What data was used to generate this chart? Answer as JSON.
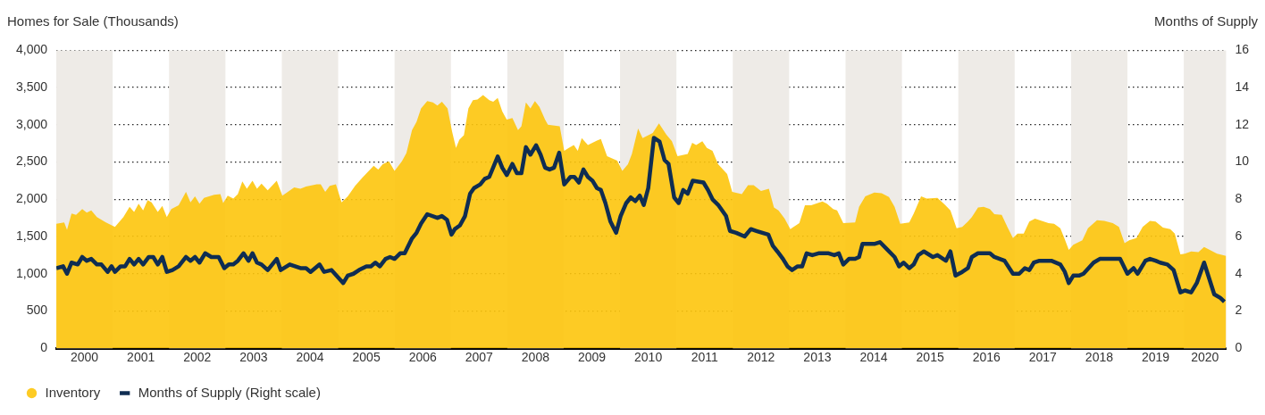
{
  "chart_data": {
    "type": "area",
    "ylabel": "Homes for Sale (Thousands)",
    "y2label": "Months of Supply",
    "xlim": [
      2000,
      2020.75
    ],
    "xticks": [
      {
        "value": 2000.5,
        "label": "2000"
      },
      {
        "value": 2001.5,
        "label": "2001"
      },
      {
        "value": 2002.5,
        "label": "2002"
      },
      {
        "value": 2003.5,
        "label": "2003"
      },
      {
        "value": 2004.5,
        "label": "2004"
      },
      {
        "value": 2005.5,
        "label": "2005"
      },
      {
        "value": 2006.5,
        "label": "2006"
      },
      {
        "value": 2007.5,
        "label": "2007"
      },
      {
        "value": 2008.5,
        "label": "2008"
      },
      {
        "value": 2009.5,
        "label": "2009"
      },
      {
        "value": 2010.5,
        "label": "2010"
      },
      {
        "value": 2011.5,
        "label": "2011"
      },
      {
        "value": 2012.5,
        "label": "2012"
      },
      {
        "value": 2013.5,
        "label": "2013"
      },
      {
        "value": 2014.5,
        "label": "2014"
      },
      {
        "value": 2015.5,
        "label": "2015"
      },
      {
        "value": 2016.5,
        "label": "2016"
      },
      {
        "value": 2017.5,
        "label": "2017"
      },
      {
        "value": 2018.5,
        "label": "2018"
      },
      {
        "value": 2019.5,
        "label": "2019"
      },
      {
        "value": 2020.375,
        "label": "2020"
      }
    ],
    "ylim": [
      0,
      4000
    ],
    "yticks": [
      0,
      500,
      {
        "value": 1000,
        "label": "1,000"
      },
      {
        "value": 1500,
        "label": "1,500"
      },
      {
        "value": 2000,
        "label": "2,000"
      },
      {
        "value": 2500,
        "label": "2,500"
      },
      {
        "value": 3000,
        "label": "3,000"
      },
      {
        "value": 3500,
        "label": "3,500"
      },
      {
        "value": 4000,
        "label": "4,000"
      }
    ],
    "y2lim": [
      0,
      16
    ],
    "y2ticks": [
      0,
      2,
      4,
      6,
      8,
      10,
      12,
      14,
      16
    ],
    "grid": "y",
    "legend": "bottom left",
    "bands": [
      {
        "axis": "x",
        "from": 2000,
        "to": 2001,
        "color": "#eeebe7"
      },
      {
        "axis": "x",
        "from": 2002,
        "to": 2003,
        "color": "#eeebe7"
      },
      {
        "axis": "x",
        "from": 2004,
        "to": 2005,
        "color": "#eeebe7"
      },
      {
        "axis": "x",
        "from": 2006,
        "to": 2007,
        "color": "#eeebe7"
      },
      {
        "axis": "x",
        "from": 2008,
        "to": 2009,
        "color": "#eeebe7"
      },
      {
        "axis": "x",
        "from": 2010,
        "to": 2011,
        "color": "#eeebe7"
      },
      {
        "axis": "x",
        "from": 2012,
        "to": 2013,
        "color": "#eeebe7"
      },
      {
        "axis": "x",
        "from": 2014,
        "to": 2015,
        "color": "#eeebe7"
      },
      {
        "axis": "x",
        "from": 2016,
        "to": 2017,
        "color": "#eeebe7"
      },
      {
        "axis": "x",
        "from": 2018,
        "to": 2019,
        "color": "#eeebe7"
      },
      {
        "axis": "x",
        "from": 2020,
        "to": 2020.75,
        "color": "#eeebe7"
      }
    ],
    "series": [
      {
        "name": "Inventory",
        "type": "area",
        "color": "#fdc50c",
        "x": [
          2000.0,
          2000.14,
          2000.19,
          2000.27,
          2000.35,
          2000.46,
          2000.54,
          2000.62,
          2000.72,
          2000.88,
          2001.04,
          2001.19,
          2001.3,
          2001.38,
          2001.46,
          2001.54,
          2001.62,
          2001.69,
          2001.8,
          2001.88,
          2001.96,
          2002.04,
          2002.17,
          2002.3,
          2002.38,
          2002.46,
          2002.54,
          2002.62,
          2002.8,
          2002.91,
          2002.96,
          2003.04,
          2003.14,
          2003.22,
          2003.3,
          2003.38,
          2003.48,
          2003.56,
          2003.64,
          2003.75,
          2003.91,
          2004.01,
          2004.22,
          2004.33,
          2004.43,
          2004.62,
          2004.69,
          2004.77,
          2004.85,
          2004.96,
          2005.06,
          2005.17,
          2005.3,
          2005.43,
          2005.63,
          2005.71,
          2005.79,
          2005.9,
          2006.0,
          2006.13,
          2006.21,
          2006.31,
          2006.39,
          2006.47,
          2006.58,
          2006.68,
          2006.76,
          2006.84,
          2006.94,
          2007.02,
          2007.09,
          2007.15,
          2007.23,
          2007.31,
          2007.39,
          2007.47,
          2007.57,
          2007.68,
          2007.75,
          2007.83,
          2007.91,
          2007.99,
          2008.09,
          2008.19,
          2008.25,
          2008.33,
          2008.41,
          2008.49,
          2008.57,
          2008.67,
          2008.72,
          2008.93,
          2009.01,
          2009.09,
          2009.18,
          2009.25,
          2009.32,
          2009.43,
          2009.59,
          2009.66,
          2009.77,
          2009.95,
          2010.04,
          2010.14,
          2010.21,
          2010.32,
          2010.4,
          2010.58,
          2010.69,
          2010.82,
          2010.92,
          2011.02,
          2011.09,
          2011.2,
          2011.28,
          2011.35,
          2011.46,
          2011.54,
          2011.64,
          2011.74,
          2011.9,
          2011.99,
          2012.16,
          2012.27,
          2012.37,
          2012.5,
          2012.64,
          2012.73,
          2012.81,
          2012.92,
          2013.02,
          2013.18,
          2013.28,
          2013.39,
          2013.59,
          2013.67,
          2013.78,
          2013.85,
          2013.96,
          2014.17,
          2014.24,
          2014.35,
          2014.51,
          2014.64,
          2014.77,
          2014.87,
          2014.97,
          2015.13,
          2015.21,
          2015.34,
          2015.44,
          2015.63,
          2015.76,
          2015.86,
          2015.97,
          2016.07,
          2016.17,
          2016.24,
          2016.35,
          2016.45,
          2016.56,
          2016.64,
          2016.77,
          2016.87,
          2016.97,
          2017.05,
          2017.16,
          2017.26,
          2017.36,
          2017.6,
          2017.7,
          2017.81,
          2017.89,
          2017.96,
          2018.04,
          2018.2,
          2018.3,
          2018.46,
          2018.59,
          2018.74,
          2018.85,
          2018.95,
          2019.03,
          2019.16,
          2019.27,
          2019.4,
          2019.5,
          2019.63,
          2019.76,
          2019.84,
          2019.94,
          2020.02,
          2020.13,
          2020.26,
          2020.36,
          2020.46,
          2020.59,
          2020.75
        ],
        "values": [
          1670,
          1690,
          1590,
          1810,
          1790,
          1870,
          1820,
          1850,
          1760,
          1690,
          1630,
          1760,
          1900,
          1830,
          1940,
          1850,
          1990,
          1960,
          1830,
          1910,
          1760,
          1870,
          1920,
          2100,
          1960,
          2040,
          1940,
          2020,
          2060,
          2070,
          1950,
          2050,
          2010,
          2070,
          2240,
          2140,
          2250,
          2140,
          2210,
          2120,
          2250,
          2050,
          2160,
          2140,
          2170,
          2200,
          2200,
          2100,
          2180,
          2200,
          1960,
          2040,
          2180,
          2290,
          2450,
          2400,
          2470,
          2510,
          2380,
          2510,
          2620,
          2930,
          3040,
          3220,
          3320,
          3300,
          3260,
          3310,
          3220,
          2910,
          2690,
          2800,
          2860,
          3220,
          3330,
          3340,
          3400,
          3330,
          3310,
          3360,
          3180,
          3070,
          3090,
          2930,
          2980,
          3300,
          3220,
          3320,
          3240,
          3070,
          3000,
          2980,
          2650,
          2690,
          2730,
          2650,
          2820,
          2730,
          2790,
          2810,
          2580,
          2520,
          2380,
          2470,
          2610,
          2950,
          2820,
          2890,
          3020,
          2870,
          2780,
          2580,
          2590,
          2610,
          2760,
          2730,
          2780,
          2690,
          2650,
          2470,
          2340,
          2100,
          2070,
          2190,
          2190,
          2110,
          2140,
          1890,
          1850,
          1740,
          1600,
          1680,
          1920,
          1920,
          1970,
          1940,
          1870,
          1850,
          1680,
          1690,
          1900,
          2040,
          2090,
          2080,
          2030,
          1900,
          1670,
          1690,
          1810,
          2040,
          2010,
          2020,
          1930,
          1850,
          1610,
          1630,
          1700,
          1760,
          1890,
          1900,
          1870,
          1800,
          1790,
          1630,
          1480,
          1540,
          1540,
          1700,
          1740,
          1680,
          1670,
          1610,
          1460,
          1320,
          1390,
          1450,
          1610,
          1720,
          1710,
          1680,
          1630,
          1410,
          1450,
          1480,
          1630,
          1710,
          1700,
          1620,
          1600,
          1540,
          1260,
          1270,
          1300,
          1290,
          1360,
          1320,
          1270,
          1240
        ]
      },
      {
        "name": "Months of Supply (Right scale)",
        "type": "line",
        "axis": "y2",
        "color": "#0f2d52",
        "x": [
          2000.0,
          2000.12,
          2000.19,
          2000.27,
          2000.38,
          2000.46,
          2000.54,
          2000.62,
          2000.72,
          2000.8,
          2000.91,
          2000.98,
          2001.04,
          2001.14,
          2001.22,
          2001.3,
          2001.38,
          2001.46,
          2001.54,
          2001.64,
          2001.72,
          2001.8,
          2001.88,
          2001.96,
          2002.06,
          2002.17,
          2002.3,
          2002.38,
          2002.46,
          2002.54,
          2002.64,
          2002.75,
          2002.88,
          2002.98,
          2003.06,
          2003.14,
          2003.22,
          2003.32,
          2003.41,
          2003.48,
          2003.56,
          2003.64,
          2003.75,
          2003.91,
          2003.98,
          2004.14,
          2004.33,
          2004.43,
          2004.51,
          2004.67,
          2004.75,
          2004.88,
          2005.09,
          2005.17,
          2005.27,
          2005.37,
          2005.5,
          2005.58,
          2005.66,
          2005.74,
          2005.84,
          2005.92,
          2006.0,
          2006.1,
          2006.18,
          2006.31,
          2006.39,
          2006.47,
          2006.58,
          2006.76,
          2006.84,
          2006.93,
          2007.01,
          2007.07,
          2007.16,
          2007.25,
          2007.34,
          2007.41,
          2007.52,
          2007.6,
          2007.68,
          2007.83,
          2007.91,
          2007.99,
          2008.09,
          2008.17,
          2008.25,
          2008.33,
          2008.41,
          2008.51,
          2008.59,
          2008.67,
          2008.75,
          2008.83,
          2008.92,
          2009.01,
          2009.12,
          2009.19,
          2009.27,
          2009.35,
          2009.43,
          2009.51,
          2009.59,
          2009.66,
          2009.74,
          2009.83,
          2009.93,
          2010.01,
          2010.11,
          2010.19,
          2010.27,
          2010.35,
          2010.42,
          2010.5,
          2010.6,
          2010.7,
          2010.79,
          2010.86,
          2010.96,
          2011.04,
          2011.12,
          2011.2,
          2011.29,
          2011.48,
          2011.56,
          2011.64,
          2011.74,
          2011.88,
          2011.95,
          2012.06,
          2012.21,
          2012.32,
          2012.42,
          2012.63,
          2012.71,
          2012.79,
          2012.89,
          2012.97,
          2013.05,
          2013.15,
          2013.23,
          2013.31,
          2013.41,
          2013.52,
          2013.7,
          2013.8,
          2013.88,
          2013.96,
          2014.06,
          2014.17,
          2014.24,
          2014.3,
          2014.51,
          2014.61,
          2014.74,
          2014.87,
          2014.95,
          2015.03,
          2015.13,
          2015.21,
          2015.29,
          2015.39,
          2015.55,
          2015.63,
          2015.78,
          2015.86,
          2015.95,
          2016.07,
          2016.17,
          2016.24,
          2016.35,
          2016.45,
          2016.56,
          2016.64,
          2016.82,
          2016.97,
          2017.08,
          2017.18,
          2017.26,
          2017.34,
          2017.44,
          2017.65,
          2017.81,
          2017.89,
          2017.96,
          2018.04,
          2018.14,
          2018.22,
          2018.4,
          2018.51,
          2018.87,
          2019.0,
          2019.11,
          2019.18,
          2019.32,
          2019.4,
          2019.5,
          2019.58,
          2019.71,
          2019.82,
          2019.94,
          2020.02,
          2020.13,
          2020.23,
          2020.36,
          2020.54,
          2020.65,
          2020.72
        ],
        "values": [
          4.3,
          4.4,
          4.0,
          4.6,
          4.5,
          4.9,
          4.7,
          4.8,
          4.5,
          4.5,
          4.1,
          4.4,
          4.1,
          4.4,
          4.4,
          4.8,
          4.5,
          4.8,
          4.5,
          4.9,
          4.9,
          4.5,
          4.9,
          4.1,
          4.2,
          4.4,
          4.9,
          4.7,
          4.9,
          4.6,
          5.1,
          4.9,
          4.9,
          4.3,
          4.5,
          4.5,
          4.7,
          5.1,
          4.7,
          5.1,
          4.6,
          4.5,
          4.2,
          4.8,
          4.2,
          4.5,
          4.3,
          4.3,
          4.1,
          4.5,
          4.1,
          4.2,
          3.5,
          3.9,
          4.0,
          4.2,
          4.4,
          4.4,
          4.6,
          4.4,
          4.8,
          4.9,
          4.8,
          5.1,
          5.1,
          5.9,
          6.2,
          6.7,
          7.2,
          7.0,
          7.1,
          6.9,
          6.1,
          6.4,
          6.6,
          7.1,
          8.3,
          8.6,
          8.8,
          9.1,
          9.2,
          10.3,
          9.7,
          9.3,
          9.9,
          9.4,
          9.4,
          10.8,
          10.4,
          10.9,
          10.4,
          9.7,
          9.6,
          9.7,
          10.5,
          8.8,
          9.2,
          9.2,
          8.9,
          9.6,
          9.2,
          9.0,
          8.6,
          8.5,
          7.8,
          6.8,
          6.2,
          7.1,
          7.8,
          8.1,
          7.9,
          8.2,
          7.7,
          8.6,
          11.3,
          11.1,
          10.1,
          9.9,
          8.1,
          7.8,
          8.5,
          8.3,
          9.0,
          8.9,
          8.5,
          8.0,
          7.7,
          7.1,
          6.3,
          6.2,
          6.0,
          6.4,
          6.3,
          6.1,
          5.5,
          5.2,
          4.8,
          4.4,
          4.2,
          4.4,
          4.4,
          5.1,
          5.0,
          5.1,
          5.1,
          5.0,
          5.1,
          4.5,
          4.8,
          4.8,
          4.9,
          5.6,
          5.6,
          5.7,
          5.3,
          4.9,
          4.4,
          4.6,
          4.3,
          4.5,
          5.0,
          5.2,
          4.9,
          5.0,
          4.7,
          5.2,
          3.9,
          4.1,
          4.3,
          4.9,
          5.1,
          5.1,
          5.1,
          4.9,
          4.7,
          4.0,
          4.0,
          4.3,
          4.2,
          4.6,
          4.7,
          4.7,
          4.5,
          4.1,
          3.5,
          3.9,
          3.9,
          4.0,
          4.6,
          4.8,
          4.8,
          4.0,
          4.3,
          4.0,
          4.7,
          4.8,
          4.7,
          4.6,
          4.5,
          4.2,
          3.0,
          3.1,
          3.0,
          3.5,
          4.6,
          2.9,
          2.7,
          2.5
        ]
      }
    ]
  }
}
